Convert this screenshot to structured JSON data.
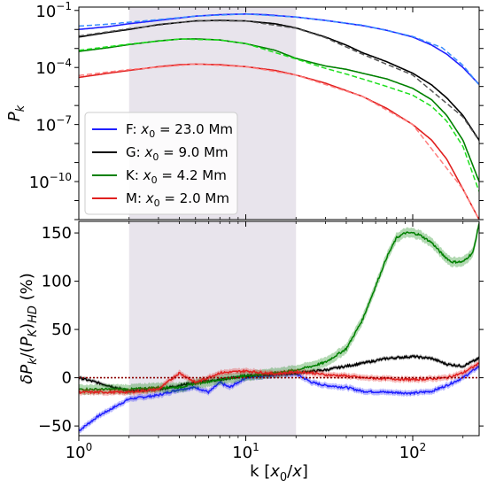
{
  "chart_data": [
    {
      "panel": "top",
      "type": "line",
      "xscale": "log",
      "yscale": "log",
      "xlim": [
        1,
        250
      ],
      "ylim": [
        1e-12,
        0.15
      ],
      "ylabel": "P_k",
      "xticks": [
        {
          "value": 1,
          "base": "10",
          "exp": "0"
        },
        {
          "value": 10,
          "base": "10",
          "exp": "1"
        },
        {
          "value": 100,
          "base": "10",
          "exp": "2"
        }
      ],
      "yticks": [
        {
          "value": 1e-10,
          "base": "10",
          "exp": "−10"
        },
        {
          "value": 1e-07,
          "base": "10",
          "exp": "−7"
        },
        {
          "value": 0.0001,
          "base": "10",
          "exp": "−4"
        },
        {
          "value": 0.1,
          "base": "10",
          "exp": "−1"
        }
      ],
      "shaded_region": {
        "x": [
          2,
          20
        ],
        "color": "#e8e4ec"
      },
      "legend": {
        "placement": "lower-left",
        "entries": [
          {
            "label": "F: x0 = 23.0 Mm",
            "prefix": "F: ",
            "var": "x",
            "sub": "0",
            "suffix": " = 23.0 Mm",
            "color": "#1f1fff"
          },
          {
            "label": "G: x0 = 9.0 Mm",
            "prefix": "G: ",
            "var": "x",
            "sub": "0",
            "suffix": " = 9.0 Mm",
            "color": "#000000"
          },
          {
            "label": "K: x0 = 4.2 Mm",
            "prefix": "K: ",
            "var": "x",
            "sub": "0",
            "suffix": " = 4.2 Mm",
            "color": "#008000"
          },
          {
            "label": "M: x0 = 2.0 Mm",
            "prefix": "M: ",
            "var": "x",
            "sub": "0",
            "suffix": " = 2.0 Mm",
            "color": "#e0201f"
          }
        ]
      },
      "series": [
        {
          "name": "F",
          "color": "#1f1fff",
          "style": "solid",
          "x": [
            1,
            1.5,
            2,
            3,
            4,
            5,
            7,
            10,
            13,
            20,
            30,
            50,
            70,
            100,
            130,
            160,
            200,
            250
          ],
          "y": [
            0.01,
            0.014,
            0.02,
            0.03,
            0.04,
            0.05,
            0.06,
            0.065,
            0.06,
            0.045,
            0.03,
            0.016,
            0.009,
            0.004,
            0.0015,
            0.0005,
            0.0001,
            1.3e-05
          ]
        },
        {
          "name": "F-HD",
          "color": "#3a8cff",
          "style": "dashed",
          "x": [
            1,
            1.5,
            2,
            3,
            5,
            10,
            20,
            50,
            100,
            150,
            200,
            250
          ],
          "y": [
            0.015,
            0.019,
            0.024,
            0.033,
            0.05,
            0.065,
            0.045,
            0.017,
            0.0043,
            0.0011,
            0.00013,
            1.2e-05
          ]
        },
        {
          "name": "G",
          "color": "#000000",
          "style": "solid",
          "x": [
            1,
            1.5,
            2,
            3,
            5,
            7,
            10,
            15,
            20,
            30,
            40,
            50,
            70,
            100,
            130,
            160,
            200,
            250
          ],
          "y": [
            0.004,
            0.007,
            0.01,
            0.018,
            0.028,
            0.03,
            0.028,
            0.02,
            0.012,
            0.004,
            0.0015,
            0.0006,
            0.0002,
            5e-05,
            1.2e-05,
            2.5e-06,
            3e-07,
            1.5e-08
          ]
        },
        {
          "name": "G-HD",
          "color": "#555555",
          "style": "dashed",
          "x": [
            1,
            2,
            5,
            10,
            20,
            30,
            50,
            100,
            200,
            250
          ],
          "y": [
            0.0045,
            0.011,
            0.029,
            0.028,
            0.0115,
            0.0037,
            0.0005,
            4e-05,
            2.5e-07,
            1.4e-08
          ]
        },
        {
          "name": "K",
          "color": "#008000",
          "style": "solid",
          "x": [
            1,
            1.5,
            2,
            3,
            4,
            5,
            7,
            10,
            15,
            20,
            25,
            30,
            40,
            50,
            70,
            100,
            130,
            160,
            200,
            250
          ],
          "y": [
            0.0007,
            0.0011,
            0.0016,
            0.0025,
            0.0031,
            0.0032,
            0.0028,
            0.0018,
            0.0008,
            0.0003,
            0.00018,
            0.00012,
            8e-05,
            5e-05,
            2.5e-05,
            8e-06,
            2e-06,
            3e-07,
            1.5e-08,
            1e-10
          ]
        },
        {
          "name": "K-HD",
          "color": "#1ee01e",
          "style": "dashed",
          "x": [
            1,
            2,
            4,
            7,
            10,
            20,
            30,
            40,
            50,
            70,
            100,
            130,
            160,
            200,
            250
          ],
          "y": [
            0.0008,
            0.0017,
            0.0031,
            0.0028,
            0.0018,
            0.00028,
            9e-05,
            4.5e-05,
            2.5e-05,
            1e-05,
            3.5e-06,
            9e-07,
            1.5e-07,
            7e-09,
            3e-11
          ]
        },
        {
          "name": "M",
          "color": "#e0201f",
          "style": "solid",
          "x": [
            1,
            1.5,
            2,
            3,
            4,
            5,
            7,
            10,
            15,
            20,
            30,
            50,
            70,
            100,
            130,
            160,
            200,
            250
          ],
          "y": [
            3e-05,
            5e-05,
            7e-05,
            0.00011,
            0.00014,
            0.00015,
            0.00014,
            0.00011,
            7e-05,
            4e-05,
            1.5e-05,
            3e-06,
            7e-07,
            1e-07,
            1.5e-08,
            1.5e-09,
            4e-11,
            1e-12
          ]
        },
        {
          "name": "M-HD",
          "color": "#ff7f7f",
          "style": "dashed",
          "x": [
            1,
            2,
            5,
            10,
            20,
            50,
            100,
            200,
            250
          ],
          "y": [
            3.8e-05,
            7.8e-05,
            0.00015,
            0.00011,
            4e-05,
            3e-06,
            1e-07,
            4e-11,
            1e-12
          ]
        }
      ]
    },
    {
      "panel": "bottom",
      "type": "line",
      "xscale": "log",
      "xlim": [
        1,
        250
      ],
      "ylim": [
        -60,
        162
      ],
      "xlabel": "k [x0/x]",
      "ylabel": "δP_k/(P_k)_HD (%)",
      "xticks": [
        {
          "value": 1,
          "base": "10",
          "exp": "0"
        },
        {
          "value": 10,
          "base": "10",
          "exp": "1"
        },
        {
          "value": 100,
          "base": "10",
          "exp": "2"
        }
      ],
      "yticks": [
        -50,
        0,
        50,
        100,
        150
      ],
      "shaded_region": {
        "x": [
          2,
          20
        ],
        "color": "#e8e4ec"
      },
      "reference_line": {
        "y": 0,
        "style": "dotted",
        "color": "#8b0000"
      },
      "series": [
        {
          "name": "F",
          "color": "#1f1fff",
          "band": 3,
          "x": [
            1,
            1.3,
            2,
            3,
            4,
            5,
            6,
            7,
            8,
            10,
            13,
            15,
            20,
            25,
            30,
            40,
            50,
            70,
            100,
            130,
            160,
            200,
            250
          ],
          "y": [
            -55,
            -40,
            -22,
            -18,
            -12,
            -10,
            -15,
            -5,
            -10,
            0,
            2,
            3,
            4,
            -5,
            -8,
            -10,
            -14,
            -15,
            -16,
            -14,
            -8,
            0,
            12
          ]
        },
        {
          "name": "G",
          "color": "#000000",
          "band": 2,
          "x": [
            1,
            1.5,
            2,
            3,
            4,
            5,
            7,
            10,
            15,
            20,
            30,
            40,
            50,
            70,
            100,
            130,
            160,
            200,
            250
          ],
          "y": [
            0,
            -8,
            -14,
            -12,
            -8,
            -5,
            -2,
            2,
            4,
            5,
            8,
            12,
            15,
            20,
            22,
            20,
            14,
            12,
            20
          ]
        },
        {
          "name": "K",
          "color": "#008000",
          "band": 5,
          "x": [
            1,
            2,
            3,
            4,
            5,
            7,
            10,
            15,
            20,
            25,
            30,
            40,
            50,
            60,
            70,
            80,
            90,
            100,
            110,
            130,
            150,
            170,
            200,
            230,
            250
          ],
          "y": [
            -12,
            -12,
            -10,
            -10,
            -6,
            -2,
            2,
            5,
            8,
            12,
            16,
            30,
            60,
            95,
            125,
            145,
            150,
            150,
            148,
            140,
            128,
            120,
            120,
            130,
            160
          ]
        },
        {
          "name": "M",
          "color": "#e0201f",
          "band": 3,
          "x": [
            1,
            2,
            3,
            4,
            5,
            7,
            10,
            15,
            20,
            25,
            30,
            40,
            50,
            70,
            100,
            130,
            160,
            200,
            250
          ],
          "y": [
            -15,
            -15,
            -12,
            5,
            -5,
            5,
            7,
            4,
            6,
            5,
            3,
            2,
            0,
            -1,
            -2,
            -1,
            0,
            5,
            15
          ]
        }
      ]
    }
  ]
}
